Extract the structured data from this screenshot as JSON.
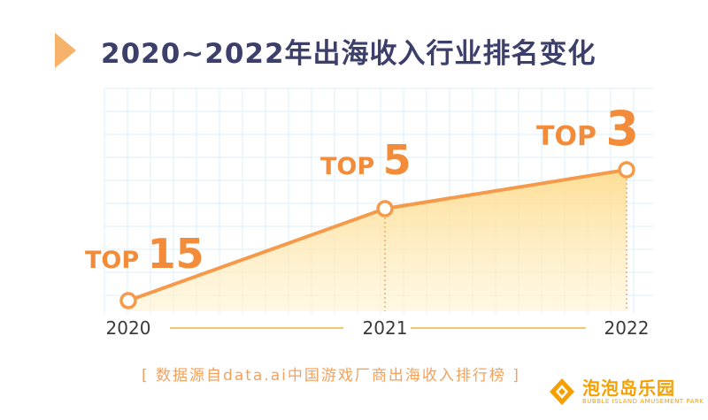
{
  "title": "2020~2022年出海收入行业排名变化",
  "chart_data": {
    "type": "line",
    "title": "2020~2022年出海收入行业排名变化",
    "categories": [
      "2020",
      "2021",
      "2022"
    ],
    "series": [
      {
        "values": [
          15,
          5,
          3
        ]
      }
    ],
    "data_labels": [
      {
        "prefix": "TOP",
        "number": "15"
      },
      {
        "prefix": "TOP",
        "number": "5"
      },
      {
        "prefix": "TOP",
        "number": "3"
      }
    ],
    "fill": "area-under-line",
    "grid": true,
    "colors": {
      "line": "#f59a4a",
      "fill": "#fde5a8",
      "grid": "#d5eef7",
      "label": "#f28c3a",
      "axis": "#3b3b3b"
    }
  },
  "source_note": "[ 数据源自data.ai中国游戏厂商出海收入排行榜 ]",
  "logo": {
    "main": "泡泡岛乐园",
    "sub": "BUBBLE ISLAND AMUSEMENT PARK"
  }
}
